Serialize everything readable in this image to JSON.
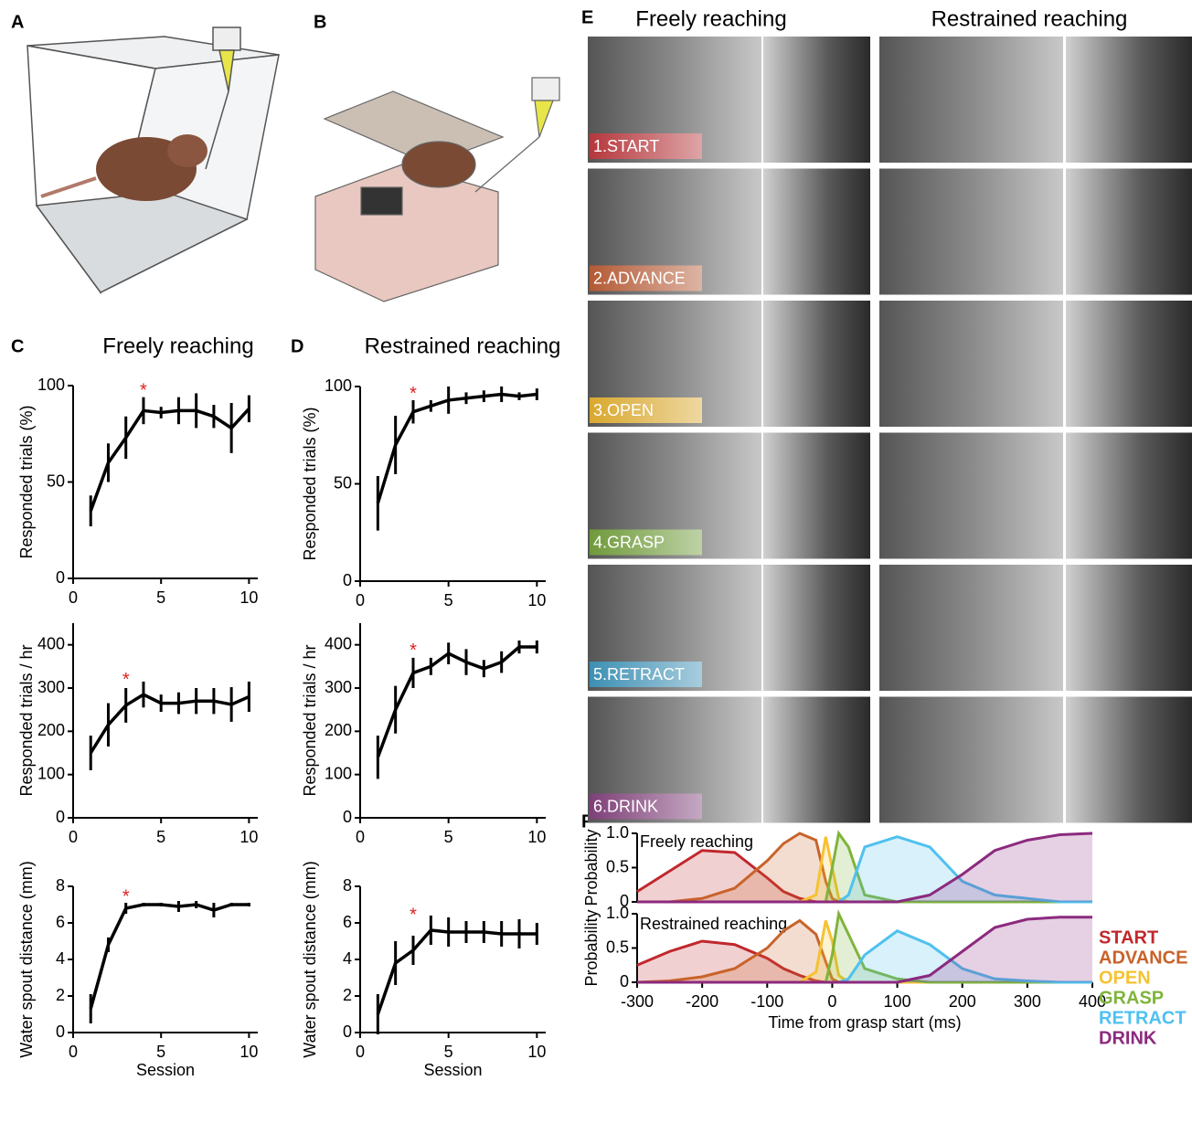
{
  "panel_labels": [
    "A",
    "B",
    "C",
    "D",
    "E",
    "F"
  ],
  "photo_panel": {
    "columns": [
      "Freely reaching",
      "Restrained reaching"
    ],
    "phases": [
      {
        "label": "1.START",
        "color": "#b5373c"
      },
      {
        "label": "2.ADVANCE",
        "color": "#b35a35"
      },
      {
        "label": "3.OPEN",
        "color": "#d9a82e"
      },
      {
        "label": "4.GRASP",
        "color": "#6f9a3a"
      },
      {
        "label": "5.RETRACT",
        "color": "#3d8fb3"
      },
      {
        "label": "6.DRINK",
        "color": "#7e3f78"
      }
    ]
  },
  "chart_data": [
    {
      "type": "line",
      "title": "Freely reaching",
      "ylabel": "Responded trials (%)",
      "x": [
        1,
        2,
        3,
        4,
        5,
        6,
        7,
        8,
        9,
        10
      ],
      "series": [
        {
          "color": "#000000",
          "values": [
            35,
            60,
            73,
            87,
            86,
            87,
            87,
            84,
            78,
            88
          ],
          "error": [
            8,
            10,
            11,
            7,
            3,
            7,
            9,
            6,
            13,
            7
          ]
        }
      ],
      "xlim": [
        0,
        10.5
      ],
      "xticks": [
        0,
        5,
        10
      ],
      "ylim": [
        0,
        100
      ],
      "yticks": [
        0,
        50,
        100
      ],
      "annotations": [
        {
          "text": "*",
          "x": 4,
          "y": 97,
          "color": "#e02020"
        }
      ]
    },
    {
      "type": "line",
      "ylabel": "Responded trials / hr",
      "x": [
        1,
        2,
        3,
        4,
        5,
        6,
        7,
        8,
        9,
        10
      ],
      "series": [
        {
          "color": "#000000",
          "values": [
            150,
            215,
            260,
            285,
            265,
            265,
            270,
            270,
            262,
            280
          ],
          "error": [
            40,
            50,
            40,
            30,
            20,
            25,
            30,
            30,
            40,
            35
          ]
        }
      ],
      "xlim": [
        0,
        10.5
      ],
      "xticks": [
        0,
        5,
        10
      ],
      "ylim": [
        0,
        450
      ],
      "yticks": [
        0,
        100,
        200,
        300,
        400
      ],
      "annotations": [
        {
          "text": "*",
          "x": 3,
          "y": 318,
          "color": "#e02020"
        }
      ]
    },
    {
      "type": "line",
      "ylabel": "Water spout distance (mm)",
      "xlabel": "Session",
      "x": [
        1,
        2,
        3,
        4,
        5,
        6,
        7,
        8,
        9,
        10
      ],
      "series": [
        {
          "color": "#000000",
          "values": [
            1.3,
            4.8,
            6.8,
            7,
            7,
            6.9,
            7,
            6.7,
            7,
            7
          ],
          "error": [
            0.8,
            0.4,
            0.3,
            0.1,
            0.1,
            0.3,
            0.2,
            0.4,
            0.1,
            0.1
          ]
        }
      ],
      "xlim": [
        0,
        10.5
      ],
      "xticks": [
        0,
        5,
        10
      ],
      "ylim": [
        0,
        8
      ],
      "yticks": [
        0,
        2,
        4,
        6,
        8
      ],
      "annotations": [
        {
          "text": "*",
          "x": 3,
          "y": 7.4,
          "color": "#e02020"
        }
      ]
    },
    {
      "type": "line",
      "title": "Restrained reaching",
      "ylabel": "Responded trials (%)",
      "x": [
        1,
        2,
        3,
        4,
        5,
        6,
        7,
        8,
        9,
        10
      ],
      "series": [
        {
          "color": "#000000",
          "values": [
            40,
            70,
            87,
            90,
            93,
            94,
            95,
            96,
            95,
            96
          ],
          "error": [
            14,
            15,
            6,
            3,
            7,
            3,
            3,
            4,
            2,
            3
          ]
        }
      ],
      "xlim": [
        0,
        10.5
      ],
      "xticks": [
        0,
        5,
        10
      ],
      "ylim": [
        0,
        100
      ],
      "yticks": [
        0,
        50,
        100
      ],
      "annotations": [
        {
          "text": "*",
          "x": 3,
          "y": 96,
          "color": "#e02020"
        }
      ]
    },
    {
      "type": "line",
      "ylabel": "Responded trials / hr",
      "x": [
        1,
        2,
        3,
        4,
        5,
        6,
        7,
        8,
        9,
        10
      ],
      "series": [
        {
          "color": "#000000",
          "values": [
            140,
            250,
            335,
            350,
            380,
            360,
            345,
            360,
            395,
            395
          ],
          "error": [
            50,
            55,
            35,
            20,
            25,
            30,
            20,
            25,
            15,
            15
          ]
        }
      ],
      "xlim": [
        0,
        10.5
      ],
      "xticks": [
        0,
        5,
        10
      ],
      "ylim": [
        0,
        450
      ],
      "yticks": [
        0,
        100,
        200,
        300,
        400
      ],
      "annotations": [
        {
          "text": "*",
          "x": 3,
          "y": 385,
          "color": "#e02020"
        }
      ]
    },
    {
      "type": "line",
      "ylabel": "Water spout distance (mm)",
      "xlabel": "Session",
      "x": [
        1,
        2,
        3,
        4,
        5,
        6,
        7,
        8,
        9,
        10
      ],
      "series": [
        {
          "color": "#000000",
          "values": [
            1,
            3.8,
            4.5,
            5.6,
            5.5,
            5.5,
            5.5,
            5.4,
            5.4,
            5.4
          ],
          "error": [
            1.1,
            1.2,
            0.8,
            0.8,
            0.8,
            0.6,
            0.6,
            0.7,
            0.8,
            0.6
          ]
        }
      ],
      "xlim": [
        0,
        10.5
      ],
      "xticks": [
        0,
        5,
        10
      ],
      "ylim": [
        0,
        8
      ],
      "yticks": [
        0,
        2,
        4,
        6,
        8
      ],
      "annotations": [
        {
          "text": "*",
          "x": 3,
          "y": 6.4,
          "color": "#e02020"
        }
      ]
    },
    {
      "type": "area",
      "title": "Freely reaching",
      "ylabel": "Probability",
      "x": [
        -300,
        -250,
        -200,
        -150,
        -100,
        -75,
        -50,
        -25,
        -10,
        0,
        10,
        25,
        50,
        100,
        150,
        200,
        250,
        300,
        350,
        400
      ],
      "xlim": [
        -300,
        400
      ],
      "ylim": [
        0,
        1
      ],
      "yticks": [
        0,
        0.5,
        {
          "value": 1,
          "label": "1.0"
        }
      ],
      "series": [
        {
          "color": "#c0282d",
          "values": [
            0.15,
            0.45,
            0.75,
            0.72,
            0.35,
            0.15,
            0.05,
            0,
            0,
            0,
            0,
            0,
            0,
            0,
            0,
            0,
            0,
            0,
            0,
            0
          ]
        },
        {
          "color": "#c8632a",
          "values": [
            0,
            0,
            0.05,
            0.2,
            0.6,
            0.85,
            1,
            0.9,
            0.3,
            0.05,
            0,
            0,
            0,
            0,
            0,
            0,
            0,
            0,
            0,
            0
          ]
        },
        {
          "color": "#f5c232",
          "values": [
            0,
            0,
            0,
            0,
            0,
            0,
            0,
            0.1,
            0.95,
            0.5,
            0.05,
            0,
            0,
            0,
            0,
            0,
            0,
            0,
            0,
            0
          ]
        },
        {
          "color": "#7fb43b",
          "values": [
            0,
            0,
            0,
            0,
            0,
            0,
            0,
            0,
            0,
            0.5,
            1,
            0.8,
            0.1,
            0,
            0,
            0,
            0,
            0,
            0,
            0
          ]
        },
        {
          "color": "#4fc1ef",
          "values": [
            0,
            0,
            0,
            0,
            0,
            0,
            0,
            0,
            0,
            0,
            0,
            0.1,
            0.8,
            0.95,
            0.8,
            0.3,
            0.1,
            0.05,
            0,
            0
          ]
        },
        {
          "color": "#8c2a7e",
          "values": [
            0,
            0,
            0,
            0,
            0,
            0,
            0,
            0,
            0,
            0,
            0,
            0,
            0,
            0,
            0.1,
            0.4,
            0.75,
            0.9,
            0.98,
            1
          ]
        }
      ]
    },
    {
      "type": "area",
      "title": "Restrained reaching",
      "ylabel": "Probability",
      "xlabel": "Time from grasp start (ms)",
      "x": [
        -300,
        -250,
        -200,
        -150,
        -100,
        -75,
        -50,
        -25,
        -10,
        0,
        10,
        25,
        50,
        100,
        150,
        200,
        250,
        300,
        350,
        400
      ],
      "xlim": [
        -300,
        400
      ],
      "xticks": [
        -300,
        -200,
        -100,
        0,
        100,
        200,
        300,
        400
      ],
      "ylim": [
        0,
        1
      ],
      "yticks": [
        0,
        0.5,
        {
          "value": 1,
          "label": "1.0"
        }
      ],
      "series": [
        {
          "name": "START",
          "color": "#c0282d",
          "values": [
            0.25,
            0.45,
            0.6,
            0.55,
            0.35,
            0.2,
            0.1,
            0.02,
            0,
            0,
            0,
            0,
            0,
            0,
            0,
            0,
            0,
            0,
            0,
            0
          ]
        },
        {
          "name": "ADVANCE",
          "color": "#c8632a",
          "values": [
            0,
            0.02,
            0.08,
            0.2,
            0.5,
            0.75,
            0.9,
            0.7,
            0.3,
            0.05,
            0,
            0,
            0,
            0,
            0,
            0,
            0,
            0,
            0,
            0
          ]
        },
        {
          "name": "OPEN",
          "color": "#f5c232",
          "values": [
            0,
            0,
            0,
            0,
            0,
            0,
            0,
            0.15,
            0.9,
            0.6,
            0.1,
            0,
            0,
            0,
            0,
            0,
            0,
            0,
            0,
            0
          ]
        },
        {
          "name": "GRASP",
          "color": "#7fb43b",
          "values": [
            0,
            0,
            0,
            0,
            0,
            0,
            0,
            0,
            0,
            0.4,
            1,
            0.7,
            0.2,
            0.05,
            0,
            0,
            0,
            0,
            0,
            0
          ]
        },
        {
          "name": "RETRACT",
          "color": "#4fc1ef",
          "values": [
            0,
            0,
            0,
            0,
            0,
            0,
            0,
            0,
            0,
            0,
            0,
            0.05,
            0.4,
            0.75,
            0.55,
            0.2,
            0.05,
            0.02,
            0,
            0
          ]
        },
        {
          "name": "DRINK",
          "color": "#8c2a7e",
          "values": [
            0,
            0,
            0,
            0,
            0,
            0,
            0,
            0,
            0,
            0,
            0,
            0,
            0,
            0,
            0.1,
            0.45,
            0.8,
            0.92,
            0.95,
            0.95
          ]
        }
      ]
    }
  ]
}
